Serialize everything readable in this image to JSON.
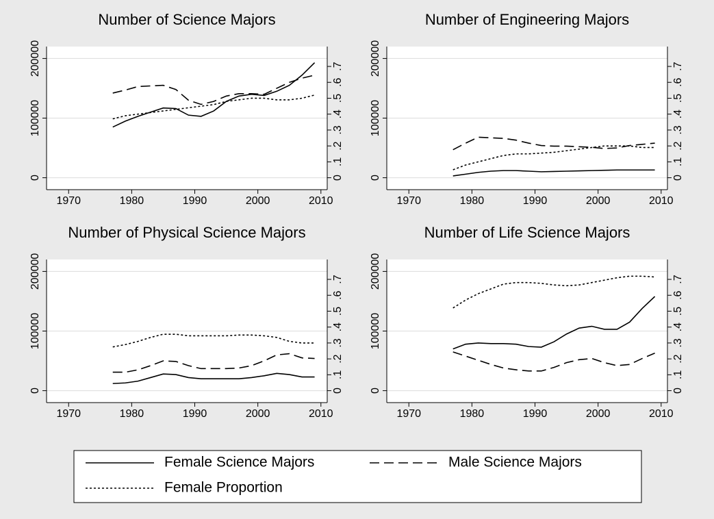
{
  "chart_data": [
    {
      "type": "line",
      "title": "Number of Science Majors",
      "x": [
        1977,
        1979,
        1981,
        1983,
        1985,
        1987,
        1989,
        1991,
        1993,
        1995,
        1997,
        1999,
        2001,
        2003,
        2005,
        2007,
        2009
      ],
      "xlim": [
        1966.5,
        2011
      ],
      "xticks": [
        1970,
        1980,
        1990,
        2000,
        2010
      ],
      "ylim": [
        -20000,
        220000
      ],
      "yticks": [
        0,
        100000,
        200000
      ],
      "y2lim": [
        -0.075,
        0.825
      ],
      "y2ticks": [
        0,
        {
          "value": 0.1,
          "label": ".1"
        },
        {
          "value": 0.2,
          "label": ".2"
        },
        {
          "value": 0.3,
          "label": ".3"
        },
        {
          "value": 0.4,
          "label": ".4"
        },
        {
          "value": 0.5,
          "label": ".5"
        },
        {
          "value": 0.6,
          "label": ".6"
        },
        {
          "value": 0.7,
          "label": ".7"
        }
      ],
      "grid": true,
      "series": [
        {
          "name": "Female Science Majors",
          "color": "#000000",
          "dash": "solid",
          "values": [
            85000,
            95000,
            103000,
            110000,
            117000,
            116000,
            105000,
            103000,
            112000,
            128000,
            137000,
            140000,
            138000,
            145000,
            155000,
            172000,
            193000
          ]
        },
        {
          "name": "Male Science Majors",
          "color": "#000000",
          "dash": "dashed",
          "values": [
            142000,
            147000,
            153000,
            154000,
            155000,
            148000,
            130000,
            123000,
            128000,
            137000,
            141000,
            141000,
            140000,
            150000,
            160000,
            167000,
            172000
          ]
        },
        {
          "name": "Female Proportion",
          "color": "#000000",
          "dash": "dotted",
          "axis": "y2",
          "values": [
            0.37,
            0.39,
            0.4,
            0.41,
            0.42,
            0.43,
            0.44,
            0.45,
            0.46,
            0.48,
            0.49,
            0.5,
            0.5,
            0.49,
            0.49,
            0.5,
            0.52
          ]
        }
      ]
    },
    {
      "type": "line",
      "title": "Number of Engineering Majors",
      "x": [
        1977,
        1979,
        1981,
        1983,
        1985,
        1987,
        1989,
        1991,
        1993,
        1995,
        1997,
        1999,
        2001,
        2003,
        2005,
        2007,
        2009
      ],
      "xlim": [
        1966.5,
        2011
      ],
      "xticks": [
        1970,
        1980,
        1990,
        2000,
        2010
      ],
      "ylim": [
        -20000,
        220000
      ],
      "yticks": [
        0,
        100000,
        200000
      ],
      "y2lim": [
        -0.075,
        0.825
      ],
      "y2ticks": [
        0,
        {
          "value": 0.1,
          "label": ".1"
        },
        {
          "value": 0.2,
          "label": ".2"
        },
        {
          "value": 0.3,
          "label": ".3"
        },
        {
          "value": 0.4,
          "label": ".4"
        },
        {
          "value": 0.5,
          "label": ".5"
        },
        {
          "value": 0.6,
          "label": ".6"
        },
        {
          "value": 0.7,
          "label": ".7"
        }
      ],
      "grid": true,
      "series": [
        {
          "color": "#000000",
          "dash": "solid",
          "values": [
            3000,
            6000,
            9000,
            11000,
            12000,
            12000,
            11000,
            10000,
            10500,
            11000,
            11500,
            12000,
            12500,
            13000,
            13000,
            13000,
            13000
          ]
        },
        {
          "color": "#000000",
          "dash": "dashed",
          "values": [
            47000,
            58000,
            68000,
            67000,
            66000,
            63000,
            58000,
            54000,
            53000,
            53000,
            52000,
            51000,
            49000,
            50000,
            54000,
            56000,
            58000
          ]
        },
        {
          "color": "#000000",
          "dash": "dotted",
          "axis": "y2",
          "values": [
            0.05,
            0.08,
            0.1,
            0.12,
            0.14,
            0.15,
            0.15,
            0.155,
            0.16,
            0.17,
            0.18,
            0.19,
            0.2,
            0.2,
            0.2,
            0.19,
            0.19
          ]
        }
      ]
    },
    {
      "type": "line",
      "title": "Number of Physical Science Majors",
      "x": [
        1977,
        1979,
        1981,
        1983,
        1985,
        1987,
        1989,
        1991,
        1993,
        1995,
        1997,
        1999,
        2001,
        2003,
        2005,
        2007,
        2009
      ],
      "xlim": [
        1966.5,
        2011
      ],
      "xticks": [
        1970,
        1980,
        1990,
        2000,
        2010
      ],
      "ylim": [
        -20000,
        220000
      ],
      "yticks": [
        0,
        100000,
        200000
      ],
      "y2lim": [
        -0.075,
        0.825
      ],
      "y2ticks": [
        0,
        {
          "value": 0.1,
          "label": ".1"
        },
        {
          "value": 0.2,
          "label": ".2"
        },
        {
          "value": 0.3,
          "label": ".3"
        },
        {
          "value": 0.4,
          "label": ".4"
        },
        {
          "value": 0.5,
          "label": ".5"
        },
        {
          "value": 0.6,
          "label": ".6"
        },
        {
          "value": 0.7,
          "label": ".7"
        }
      ],
      "grid": true,
      "series": [
        {
          "color": "#000000",
          "dash": "solid",
          "values": [
            12000,
            13000,
            16000,
            22000,
            28000,
            27000,
            22000,
            20000,
            20000,
            20000,
            20000,
            22000,
            25000,
            29000,
            27000,
            23000,
            23000
          ]
        },
        {
          "color": "#000000",
          "dash": "dashed",
          "values": [
            31000,
            31000,
            35000,
            42000,
            50000,
            49000,
            42000,
            37000,
            37000,
            37000,
            38000,
            42000,
            50000,
            60000,
            62000,
            55000,
            54000
          ]
        },
        {
          "color": "#000000",
          "dash": "dotted",
          "axis": "y2",
          "values": [
            0.275,
            0.29,
            0.31,
            0.335,
            0.355,
            0.355,
            0.345,
            0.345,
            0.345,
            0.345,
            0.35,
            0.35,
            0.345,
            0.335,
            0.31,
            0.3,
            0.3
          ]
        }
      ]
    },
    {
      "type": "line",
      "title": "Number of Life Science Majors",
      "x": [
        1977,
        1979,
        1981,
        1983,
        1985,
        1987,
        1989,
        1991,
        1993,
        1995,
        1997,
        1999,
        2001,
        2003,
        2005,
        2007,
        2009
      ],
      "xlim": [
        1966.5,
        2011
      ],
      "xticks": [
        1970,
        1980,
        1990,
        2000,
        2010
      ],
      "ylim": [
        -20000,
        220000
      ],
      "yticks": [
        0,
        100000,
        200000
      ],
      "y2lim": [
        -0.075,
        0.825
      ],
      "y2ticks": [
        0,
        {
          "value": 0.1,
          "label": ".1"
        },
        {
          "value": 0.2,
          "label": ".2"
        },
        {
          "value": 0.3,
          "label": ".3"
        },
        {
          "value": 0.4,
          "label": ".4"
        },
        {
          "value": 0.5,
          "label": ".5"
        },
        {
          "value": 0.6,
          "label": ".6"
        },
        {
          "value": 0.7,
          "label": ".7"
        }
      ],
      "grid": true,
      "series": [
        {
          "color": "#000000",
          "dash": "solid",
          "values": [
            70000,
            78000,
            80000,
            79000,
            79000,
            78000,
            74000,
            73000,
            82000,
            95000,
            105000,
            108000,
            103000,
            103000,
            115000,
            138000,
            158000
          ]
        },
        {
          "color": "#000000",
          "dash": "dashed",
          "values": [
            65000,
            58000,
            51000,
            44000,
            38000,
            35000,
            33000,
            33000,
            39000,
            47000,
            52000,
            54000,
            47000,
            42000,
            44000,
            54000,
            63000
          ]
        },
        {
          "color": "#000000",
          "dash": "dotted",
          "axis": "y2",
          "values": [
            0.52,
            0.57,
            0.61,
            0.64,
            0.67,
            0.68,
            0.68,
            0.675,
            0.665,
            0.66,
            0.665,
            0.68,
            0.695,
            0.71,
            0.72,
            0.72,
            0.715
          ]
        }
      ]
    }
  ]
}
